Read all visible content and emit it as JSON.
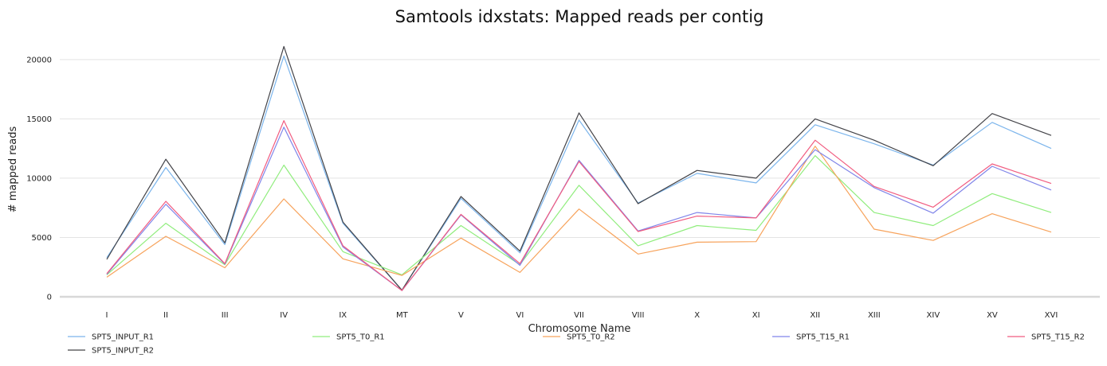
{
  "chart_data": {
    "type": "line",
    "title": "Samtools idxstats: Mapped reads per contig",
    "xlabel": "Chromosome Name",
    "ylabel": "# mapped reads",
    "ylim": [
      0,
      22000
    ],
    "yticks": [
      0,
      5000,
      10000,
      15000,
      20000
    ],
    "grid": true,
    "legend_position": "bottom",
    "categories": [
      "I",
      "II",
      "III",
      "IV",
      "IX",
      "MT",
      "V",
      "VI",
      "VII",
      "VIII",
      "X",
      "XI",
      "XII",
      "XIII",
      "XIV",
      "XV",
      "XVI"
    ],
    "series": [
      {
        "name": "SPT5_INPUT_R1",
        "color": "#7cb5ec",
        "values": [
          3300,
          10900,
          4400,
          20300,
          6200,
          550,
          8300,
          3700,
          14900,
          7900,
          10400,
          9600,
          14500,
          12900,
          11100,
          14700,
          12500
        ]
      },
      {
        "name": "SPT5_INPUT_R2",
        "color": "#434348",
        "values": [
          3150,
          11600,
          4550,
          21100,
          6300,
          560,
          8450,
          3850,
          15500,
          7850,
          10650,
          10000,
          15000,
          13200,
          11050,
          15450,
          13600
        ]
      },
      {
        "name": "SPT5_T0_R1",
        "color": "#90ed7d",
        "values": [
          1850,
          6200,
          2700,
          11100,
          3800,
          1850,
          6000,
          2700,
          9400,
          4300,
          6000,
          5600,
          11900,
          7100,
          6000,
          8700,
          7100
        ]
      },
      {
        "name": "SPT5_T0_R2",
        "color": "#f7a35c",
        "values": [
          1650,
          5100,
          2450,
          8250,
          3200,
          1800,
          4950,
          2050,
          7400,
          3600,
          4600,
          4650,
          12700,
          5700,
          4750,
          7000,
          5450
        ]
      },
      {
        "name": "SPT5_T15_R1",
        "color": "#8085e9",
        "values": [
          1900,
          7800,
          2750,
          14300,
          4200,
          520,
          6900,
          2650,
          11500,
          5550,
          7100,
          6650,
          12400,
          9200,
          7050,
          11000,
          9000
        ]
      },
      {
        "name": "SPT5_T15_R2",
        "color": "#f15c80",
        "values": [
          1950,
          8050,
          2800,
          14850,
          4300,
          530,
          6950,
          2800,
          11400,
          5500,
          6800,
          6650,
          13200,
          9300,
          7550,
          11200,
          9550
        ]
      }
    ]
  }
}
